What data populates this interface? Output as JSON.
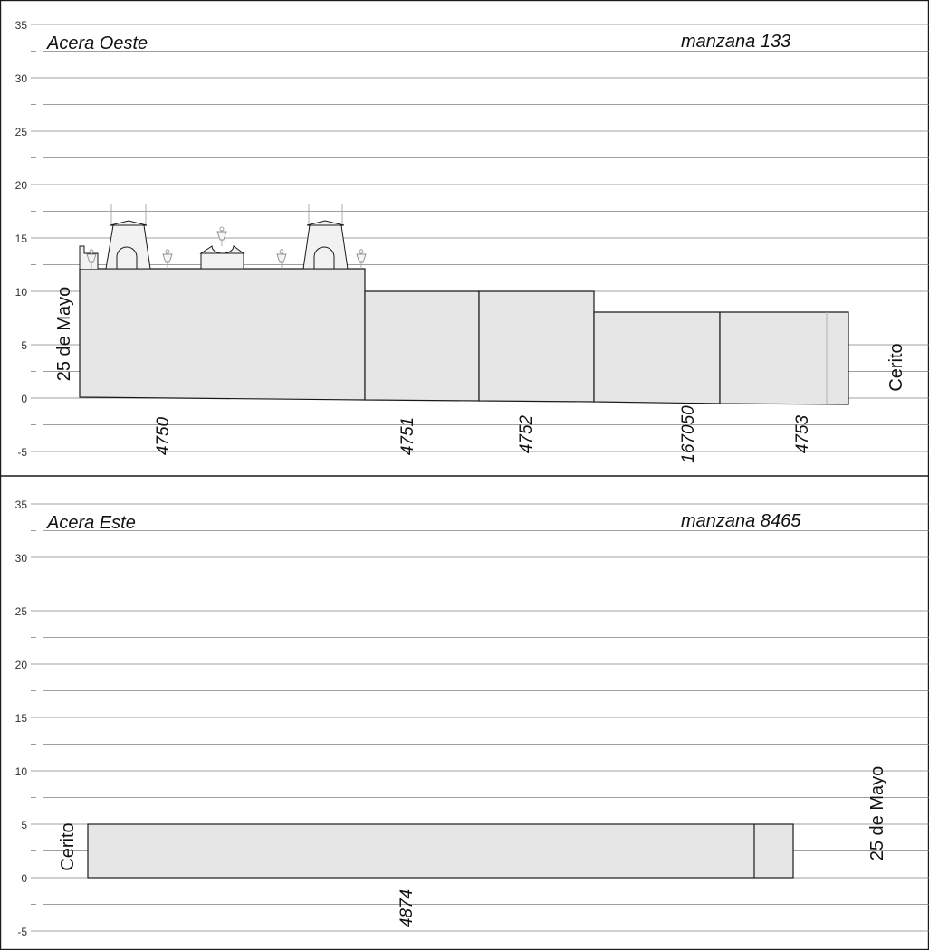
{
  "panels": [
    {
      "id": "oeste",
      "side_label": "Acera Oeste",
      "block_label": "manzana 133",
      "left_street": "25 de Mayo",
      "right_street": "Cerito",
      "y_ticks": [
        "35",
        "30",
        "25",
        "20",
        "15",
        "10",
        "5",
        "0",
        "-5"
      ],
      "lots": [
        "4750",
        "4751",
        "4752",
        "167050",
        "4753"
      ]
    },
    {
      "id": "este",
      "side_label": "Acera Este",
      "block_label": "manzana 8465",
      "left_street": "Cerito",
      "right_street": "25 de Mayo",
      "y_ticks": [
        "35",
        "30",
        "25",
        "20",
        "15",
        "10",
        "5",
        "0",
        "-5"
      ],
      "lots": [
        "4874"
      ]
    }
  ]
}
